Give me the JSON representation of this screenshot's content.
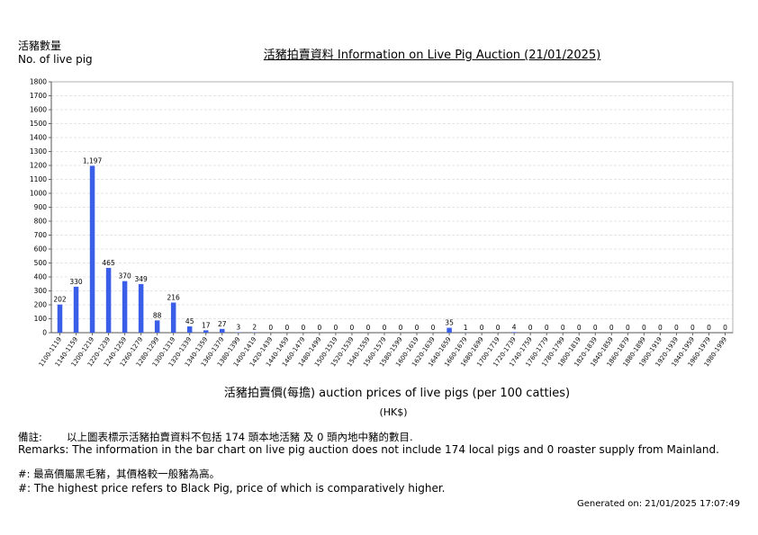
{
  "header": {
    "ylabel_zh": "活豬數量",
    "ylabel_en": "No. of live pig",
    "title": "活豬拍賣資料 Information on Live Pig Auction (21/01/2025)"
  },
  "axis": {
    "xlabel": "活豬拍賣價(每擔) auction prices of live pigs (per 100 catties)",
    "unit": "(HK$)"
  },
  "footer": {
    "remarks_zh_label": "備註:",
    "remarks_zh": "以上圖表標示活豬拍賣資料不包括 174 頭本地活豬 及 0 頭內地中豬的數目.",
    "remarks_en": "Remarks: The information in the bar chart on live pig auction does not include 174 local pigs and 0 roaster supply from Mainland.",
    "note_zh": "#: 最高價屬黑毛豬，其價格較一般豬為高。",
    "note_en": "#: The highest price refers to Black Pig, price of which is comparatively higher.",
    "generated": "Generated on: 21/01/2025 17:07:49"
  },
  "chart_data": {
    "type": "bar",
    "categories": [
      "1100-1119",
      "1140-1159",
      "1200-1219",
      "1220-1239",
      "1240-1259",
      "1260-1279",
      "1280-1299",
      "1300-1319",
      "1320-1339",
      "1340-1359",
      "1360-1379",
      "1380-1399",
      "1400-1419",
      "1420-1439",
      "1440-1459",
      "1460-1479",
      "1480-1499",
      "1500-1519",
      "1520-1539",
      "1540-1559",
      "1560-1579",
      "1580-1599",
      "1600-1619",
      "1620-1639",
      "1640-1659",
      "1660-1679",
      "1680-1699",
      "1700-1719",
      "1720-1739",
      "1740-1759",
      "1760-1779",
      "1780-1799",
      "1800-1819",
      "1820-1839",
      "1840-1859",
      "1860-1879",
      "1880-1899",
      "1900-1919",
      "1920-1939",
      "1940-1959",
      "1960-1979",
      "1980-1999"
    ],
    "values": [
      202,
      330,
      1197,
      465,
      370,
      349,
      88,
      216,
      45,
      17,
      27,
      3,
      2,
      0,
      0,
      0,
      0,
      0,
      0,
      0,
      0,
      0,
      0,
      0,
      35,
      1,
      0,
      0,
      4,
      0,
      0,
      0,
      0,
      0,
      0,
      0,
      0,
      0,
      0,
      0,
      0,
      0
    ],
    "data_labels": [
      "202",
      "330",
      "1,197",
      "465",
      "370",
      "349",
      "88",
      "216",
      "45",
      "17",
      "27",
      "3",
      "2",
      "0",
      "0",
      "0",
      "0",
      "0",
      "0",
      "0",
      "0",
      "0",
      "0",
      "0",
      "35",
      "1",
      "0",
      "0",
      "4",
      "0",
      "0",
      "0",
      "0",
      "0",
      "0",
      "0",
      "0",
      "0",
      "0",
      "0",
      "0",
      "0"
    ],
    "ylim": [
      0,
      1800
    ],
    "yticks": [
      "0",
      "100",
      "200",
      "300",
      "400",
      "500",
      "600",
      "700",
      "800",
      "900",
      "1000",
      "1100",
      "1200",
      "1300",
      "1400",
      "1500",
      "1600",
      "1700",
      "1800"
    ],
    "grid": true,
    "bar_color": "#3a5ee8"
  }
}
